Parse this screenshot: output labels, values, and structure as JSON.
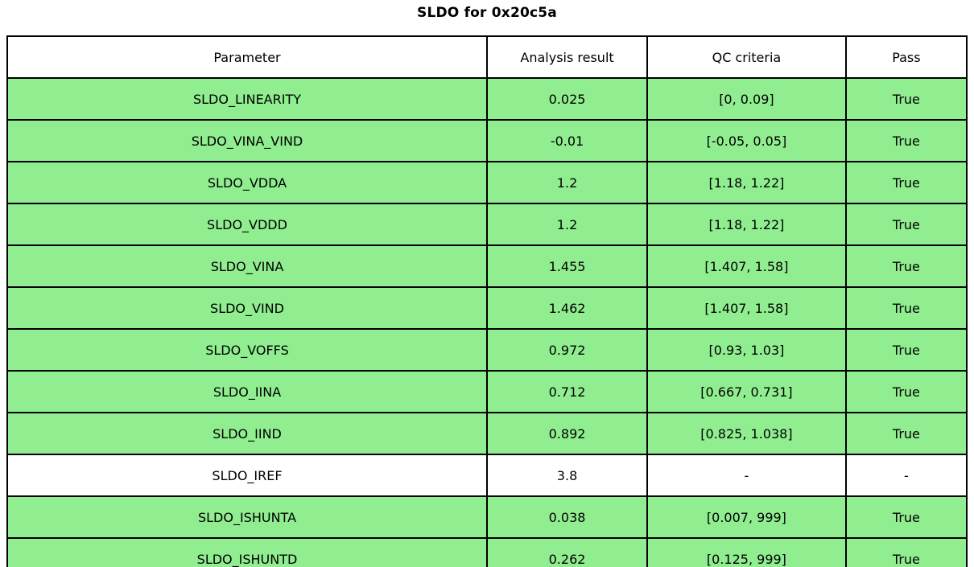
{
  "title": "SLDO for 0x20c5a",
  "chart_data": {
    "type": "table",
    "title": "SLDO for 0x20c5a",
    "columns": [
      "Parameter",
      "Analysis result",
      "QC criteria",
      "Pass"
    ],
    "rows": [
      {
        "parameter": "SLDO_LINEARITY",
        "result": "0.025",
        "criteria": "[0, 0.09]",
        "pass": "True",
        "highlight": true
      },
      {
        "parameter": "SLDO_VINA_VIND",
        "result": "-0.01",
        "criteria": "[-0.05, 0.05]",
        "pass": "True",
        "highlight": true
      },
      {
        "parameter": "SLDO_VDDA",
        "result": "1.2",
        "criteria": "[1.18, 1.22]",
        "pass": "True",
        "highlight": true
      },
      {
        "parameter": "SLDO_VDDD",
        "result": "1.2",
        "criteria": "[1.18, 1.22]",
        "pass": "True",
        "highlight": true
      },
      {
        "parameter": "SLDO_VINA",
        "result": "1.455",
        "criteria": "[1.407, 1.58]",
        "pass": "True",
        "highlight": true
      },
      {
        "parameter": "SLDO_VIND",
        "result": "1.462",
        "criteria": "[1.407, 1.58]",
        "pass": "True",
        "highlight": true
      },
      {
        "parameter": "SLDO_VOFFS",
        "result": "0.972",
        "criteria": "[0.93, 1.03]",
        "pass": "True",
        "highlight": true
      },
      {
        "parameter": "SLDO_IINA",
        "result": "0.712",
        "criteria": "[0.667, 0.731]",
        "pass": "True",
        "highlight": true
      },
      {
        "parameter": "SLDO_IIND",
        "result": "0.892",
        "criteria": "[0.825, 1.038]",
        "pass": "True",
        "highlight": true
      },
      {
        "parameter": "SLDO_IREF",
        "result": "3.8",
        "criteria": "-",
        "pass": "-",
        "highlight": false
      },
      {
        "parameter": "SLDO_ISHUNTA",
        "result": "0.038",
        "criteria": "[0.007, 999]",
        "pass": "True",
        "highlight": true
      },
      {
        "parameter": "SLDO_ISHUNTD",
        "result": "0.262",
        "criteria": "[0.125, 999]",
        "pass": "True",
        "highlight": true
      }
    ]
  },
  "colors": {
    "pass_row_green": "#90ee90",
    "border": "#000000",
    "background": "#ffffff"
  }
}
